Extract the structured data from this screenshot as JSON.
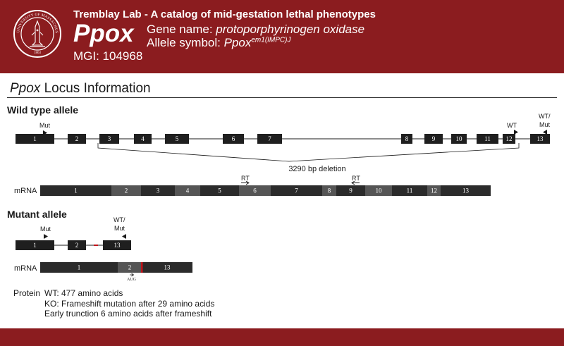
{
  "header": {
    "lab_title": "Tremblay Lab - A catalog of mid-gestation lethal phenotypes",
    "gene_symbol": "Ppox",
    "mgi": "MGI: 104968",
    "gene_name_label": "Gene name:",
    "gene_name_value": "protoporphyrinogen oxidase",
    "allele_label": "Allele symbol:",
    "allele_base": "Ppox",
    "allele_sup": "em1(IMPC)J",
    "seal_text_top": "UNIVERSITY OF MASSACHUSETTS",
    "seal_year": "1863",
    "colors": {
      "brand": "#8b1c1f",
      "exon": "#1f1f1f",
      "mrna_dark": "#2b2b2b",
      "mrna_light": "#555555",
      "deletion_mark": "#c0141a"
    }
  },
  "locus": {
    "gene": "Ppox",
    "title_rest": " Locus Information"
  },
  "wild_type": {
    "label": "Wild type allele",
    "exons": [
      "1",
      "2",
      "3",
      "4",
      "5",
      "6",
      "7",
      "8",
      "9",
      "10",
      "11",
      "12",
      "13"
    ],
    "deletion_label": "3290 bp deletion",
    "primer_mut": "Mut",
    "primer_wt": "WT",
    "primer_wt_mut_line1": "WT/",
    "primer_wt_mut_line2": "Mut",
    "mrna_label": "mRNA",
    "mrna_exons": [
      "1",
      "2",
      "3",
      "4",
      "5",
      "6",
      "7",
      "8",
      "9",
      "10",
      "11",
      "12",
      "13"
    ],
    "rt_forward": "RT",
    "rt_reverse": "RT"
  },
  "mutant": {
    "label": "Mutant allele",
    "exons": [
      "1",
      "2",
      "13"
    ],
    "primer_mut": "Mut",
    "primer_wt_mut_line1": "WT/",
    "primer_wt_mut_line2": "Mut",
    "mrna_label": "mRNA",
    "mrna_exons": [
      "1",
      "2",
      "13"
    ],
    "start_codon": "AUG"
  },
  "protein": {
    "label": "Protein",
    "lines": [
      "WT: 477 amino acids",
      "KO: Frameshift mutation after 29 amino acids",
      "Early trunction 6 amino acids after frameshift"
    ]
  }
}
